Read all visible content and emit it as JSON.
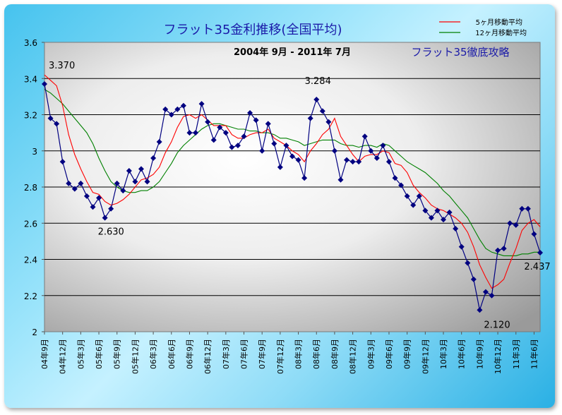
{
  "chart_data": {
    "type": "line",
    "title": "フラット35金利推移(全国平均)",
    "subtitle": "2004年 9月 - 2011年 7月",
    "corner_label": "フラット35徹底攻略",
    "ylim": [
      2,
      3.6
    ],
    "y_ticks": [
      "2",
      "2.2",
      "2.4",
      "2.6",
      "2.8",
      "3",
      "3.2",
      "3.4",
      "3.6"
    ],
    "x_tick_labels": [
      "04年9月",
      "04年12月",
      "05年3月",
      "05年6月",
      "05年9月",
      "05年12月",
      "06年3月",
      "06年6月",
      "06年9月",
      "06年12月",
      "07年3月",
      "07年6月",
      "07年9月",
      "07年12月",
      "08年3月",
      "08年6月",
      "08年9月",
      "08年12月",
      "09年3月",
      "09年6月",
      "09年9月",
      "09年12月",
      "10年3月",
      "10年6月",
      "10年9月",
      "10年12月",
      "11年3月",
      "11年6月"
    ],
    "grid": true,
    "legend_position": "top-right",
    "colors": {
      "main": "#000080",
      "ma5": "#ff0000",
      "ma12": "#008000",
      "title": "#1a1aa8",
      "frame": "#46c3ee"
    },
    "series": [
      {
        "name": "",
        "key": "main",
        "values": [
          3.37,
          3.18,
          3.15,
          2.94,
          2.82,
          2.79,
          2.82,
          2.75,
          2.69,
          2.74,
          2.63,
          2.68,
          2.82,
          2.78,
          2.89,
          2.83,
          2.9,
          2.83,
          2.96,
          3.05,
          3.23,
          3.2,
          3.23,
          3.25,
          3.1,
          3.1,
          3.26,
          3.16,
          3.06,
          3.13,
          3.1,
          3.02,
          3.03,
          3.08,
          3.21,
          3.17,
          3.0,
          3.15,
          3.04,
          2.91,
          3.03,
          2.97,
          2.95,
          2.85,
          3.18,
          3.284,
          3.22,
          3.16,
          3.0,
          2.84,
          2.95,
          2.94,
          2.94,
          3.08,
          3.0,
          2.96,
          3.03,
          2.94,
          2.85,
          2.81,
          2.75,
          2.7,
          2.75,
          2.67,
          2.63,
          2.67,
          2.62,
          2.66,
          2.57,
          2.47,
          2.38,
          2.29,
          2.12,
          2.22,
          2.2,
          2.45,
          2.46,
          2.6,
          2.59,
          2.68,
          2.68,
          2.54,
          2.437
        ]
      },
      {
        "name": "5ヶ月移動平均",
        "key": "ma5",
        "values": [
          3.42,
          3.39,
          3.36,
          3.25,
          3.09,
          2.98,
          2.9,
          2.83,
          2.77,
          2.76,
          2.72,
          2.7,
          2.71,
          2.73,
          2.76,
          2.8,
          2.84,
          2.85,
          2.87,
          2.91,
          2.99,
          3.05,
          3.13,
          3.19,
          3.2,
          3.18,
          3.2,
          3.17,
          3.14,
          3.14,
          3.14,
          3.09,
          3.07,
          3.07,
          3.09,
          3.1,
          3.1,
          3.12,
          3.07,
          3.05,
          3.03,
          3.0,
          2.98,
          2.94,
          3.0,
          3.04,
          3.09,
          3.12,
          3.18,
          3.08,
          3.03,
          2.98,
          2.94,
          2.97,
          2.98,
          2.98,
          3.0,
          2.99,
          2.93,
          2.92,
          2.88,
          2.81,
          2.77,
          2.74,
          2.7,
          2.68,
          2.67,
          2.65,
          2.63,
          2.6,
          2.55,
          2.47,
          2.37,
          2.3,
          2.24,
          2.26,
          2.29,
          2.38,
          2.46,
          2.56,
          2.6,
          2.62,
          2.58
        ]
      },
      {
        "name": "12ヶ月移動平均",
        "key": "ma12",
        "values": [
          3.34,
          3.32,
          3.29,
          3.26,
          3.22,
          3.18,
          3.14,
          3.1,
          3.04,
          2.96,
          2.89,
          2.83,
          2.8,
          2.78,
          2.77,
          2.77,
          2.78,
          2.78,
          2.8,
          2.83,
          2.88,
          2.93,
          2.99,
          3.03,
          3.06,
          3.09,
          3.12,
          3.14,
          3.15,
          3.15,
          3.14,
          3.13,
          3.12,
          3.12,
          3.11,
          3.11,
          3.1,
          3.1,
          3.09,
          3.07,
          3.07,
          3.06,
          3.05,
          3.03,
          3.04,
          3.05,
          3.06,
          3.06,
          3.06,
          3.04,
          3.03,
          3.03,
          3.02,
          3.03,
          3.03,
          3.02,
          3.04,
          3.03,
          3.0,
          2.97,
          2.94,
          2.92,
          2.9,
          2.88,
          2.85,
          2.82,
          2.78,
          2.75,
          2.71,
          2.67,
          2.63,
          2.57,
          2.51,
          2.46,
          2.44,
          2.43,
          2.42,
          2.42,
          2.42,
          2.43,
          2.43,
          2.44,
          2.44
        ]
      }
    ],
    "annotations": [
      {
        "index": 0,
        "label": "3.370"
      },
      {
        "index": 10,
        "label": "2.630"
      },
      {
        "index": 45,
        "label": "3.284"
      },
      {
        "index": 72,
        "label": "2.120"
      },
      {
        "index": 82,
        "label": "2.437"
      }
    ]
  }
}
